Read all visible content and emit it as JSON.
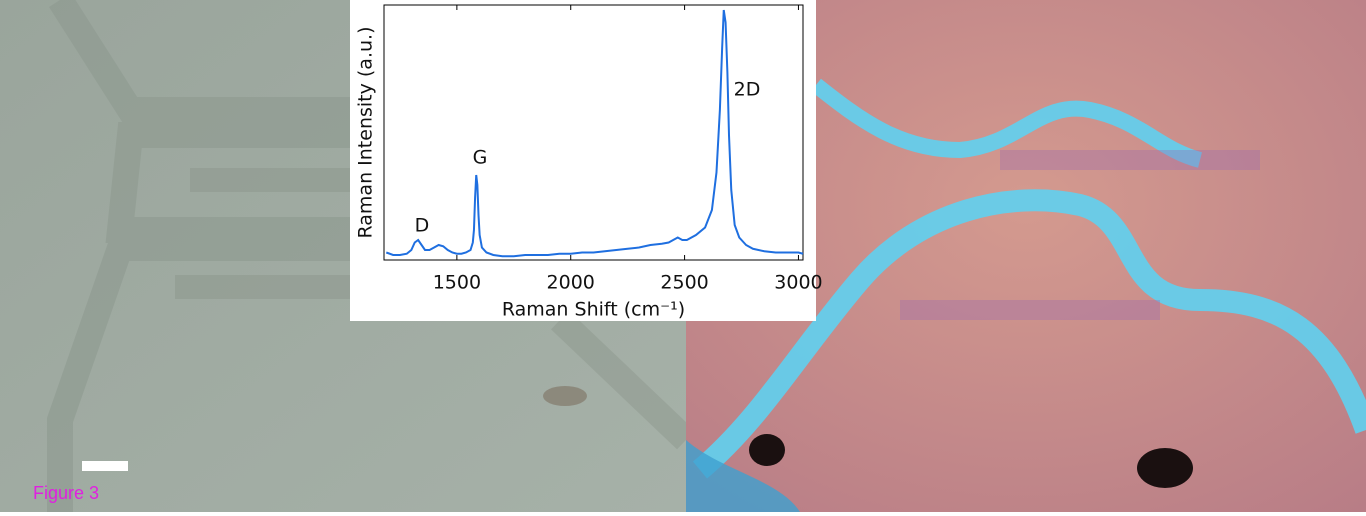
{
  "caption": "Figure 3",
  "chart_data": {
    "type": "line",
    "x_label": "Raman Shift (cm⁻¹)",
    "y_label": "Raman Intensity (a.u.)",
    "annotations": [
      "D",
      "G",
      "2D"
    ],
    "xlim": [
      1180,
      3020
    ],
    "xticks": [
      1500,
      2000,
      2500,
      3000
    ],
    "ylim": [
      0,
      102
    ],
    "series": [
      {
        "color": "#1f6fe0",
        "x": [
          1190,
          1220,
          1250,
          1280,
          1300,
          1315,
          1330,
          1345,
          1360,
          1380,
          1400,
          1420,
          1440,
          1460,
          1480,
          1500,
          1520,
          1540,
          1560,
          1570,
          1575,
          1580,
          1585,
          1590,
          1595,
          1600,
          1610,
          1630,
          1660,
          1700,
          1750,
          1800,
          1850,
          1900,
          1950,
          2000,
          2050,
          2100,
          2150,
          2200,
          2250,
          2300,
          2350,
          2400,
          2430,
          2450,
          2470,
          2490,
          2510,
          2550,
          2590,
          2620,
          2640,
          2655,
          2665,
          2672,
          2680,
          2688,
          2695,
          2705,
          2720,
          2740,
          2770,
          2800,
          2850,
          2900,
          2950,
          3000,
          3020
        ],
        "values": [
          3,
          2,
          2,
          2.5,
          4,
          7,
          8,
          6,
          4,
          4,
          5,
          6,
          5.5,
          4,
          3,
          2.5,
          2.5,
          3,
          4,
          7,
          12,
          25,
          34,
          30,
          18,
          10,
          5,
          3,
          2,
          1.5,
          1.5,
          2,
          2,
          2,
          2.5,
          2.5,
          3,
          3,
          3.5,
          4,
          4.5,
          5,
          6,
          6.5,
          7,
          8,
          9,
          8,
          8,
          10,
          13,
          20,
          35,
          60,
          85,
          100,
          95,
          75,
          50,
          28,
          14,
          9,
          6,
          4.5,
          3.5,
          3,
          3,
          3,
          2.5
        ]
      }
    ]
  }
}
